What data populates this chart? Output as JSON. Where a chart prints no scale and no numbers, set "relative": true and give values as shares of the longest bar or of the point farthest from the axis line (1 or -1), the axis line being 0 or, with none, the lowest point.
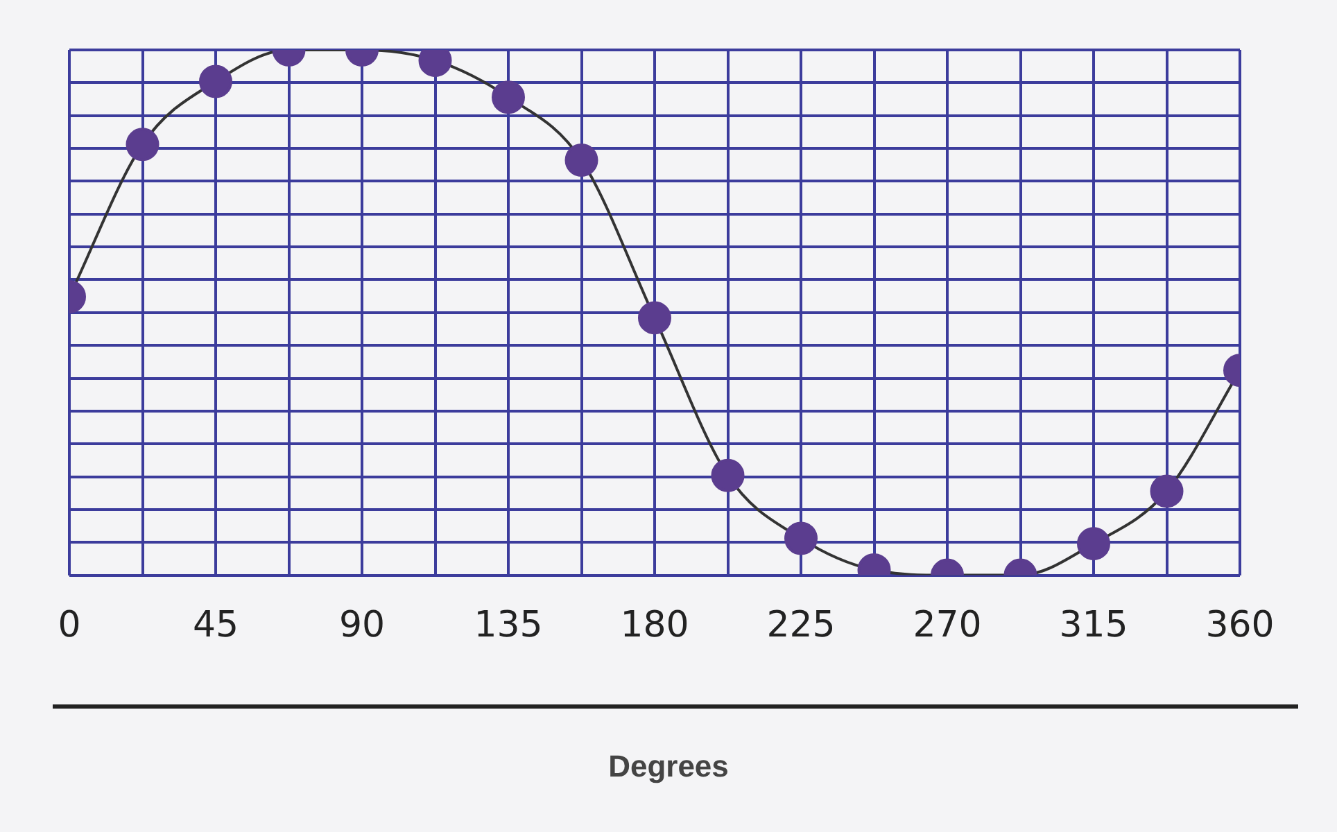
{
  "chart_data": {
    "type": "line",
    "xlabel": "Degrees",
    "relative": true,
    "marker": "circle",
    "grid": true,
    "legend": false,
    "x": [
      0,
      22.5,
      45,
      67.5,
      90,
      112.5,
      135,
      157.5,
      180,
      202.5,
      225,
      247.5,
      270,
      292.5,
      315,
      337.5,
      360
    ],
    "xlim": [
      0,
      360
    ],
    "xticks": [
      0,
      {
        "value": 22.5,
        "label": null
      },
      45,
      {
        "value": 67.5,
        "label": null
      },
      90,
      {
        "value": 112.5,
        "label": null
      },
      135,
      {
        "value": 157.5,
        "label": null
      },
      180,
      {
        "value": 202.5,
        "label": null
      },
      225,
      {
        "value": 247.5,
        "label": null
      },
      270,
      {
        "value": 292.5,
        "label": null
      },
      315,
      {
        "value": 337.5,
        "label": null
      },
      360
    ],
    "series": [
      {
        "color": "#5b3d8f",
        "values": [
          0.53,
          0.82,
          0.94,
          1,
          1,
          0.98,
          0.91,
          0.79,
          0.49,
          0.19,
          0.07,
          0.01,
          0,
          0,
          0.06,
          0.16,
          0.39
        ]
      }
    ]
  }
}
